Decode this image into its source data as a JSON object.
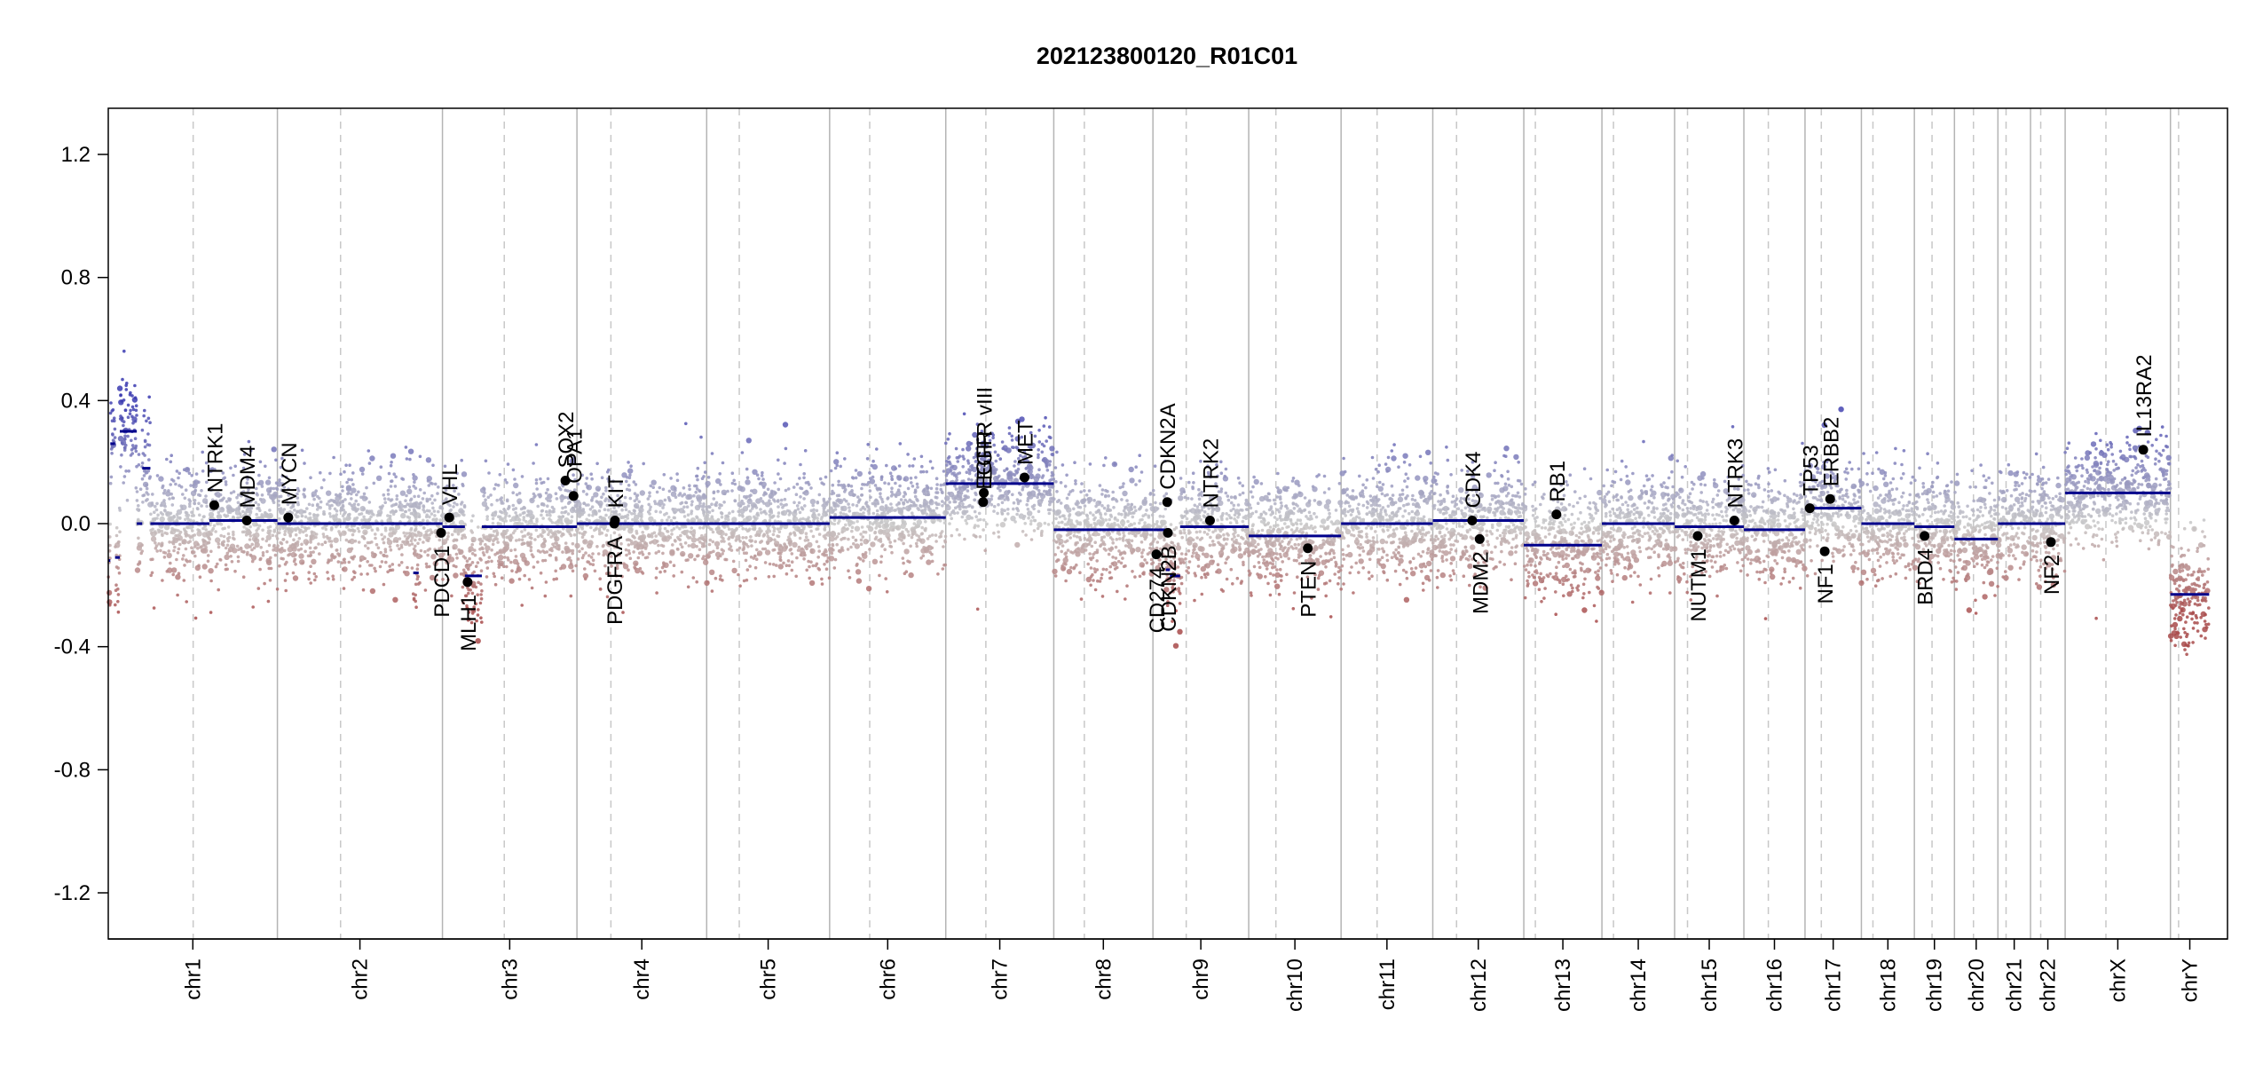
{
  "chart_data": {
    "type": "scatter",
    "title": "202123800120_R01C01",
    "xlabel": "",
    "ylabel": "",
    "ylim": [
      -1.35,
      1.35
    ],
    "y_ticks": [
      -1.2,
      -0.8,
      -0.4,
      0.0,
      0.4,
      0.8,
      1.2
    ],
    "y_tick_labels": [
      "-1.2",
      "-0.8",
      "-0.4",
      "0.0",
      "0.4",
      "0.8",
      "1.2"
    ],
    "genome_length_mb": 3120,
    "chromosomes": [
      {
        "name": "chr1",
        "length_mb": 249,
        "centromere_mb": 125
      },
      {
        "name": "chr2",
        "length_mb": 243,
        "centromere_mb": 93
      },
      {
        "name": "chr3",
        "length_mb": 198,
        "centromere_mb": 91
      },
      {
        "name": "chr4",
        "length_mb": 191,
        "centromere_mb": 50
      },
      {
        "name": "chr5",
        "length_mb": 181,
        "centromere_mb": 48
      },
      {
        "name": "chr6",
        "length_mb": 171,
        "centromere_mb": 59
      },
      {
        "name": "chr7",
        "length_mb": 159,
        "centromere_mb": 59
      },
      {
        "name": "chr8",
        "length_mb": 146,
        "centromere_mb": 45
      },
      {
        "name": "chr9",
        "length_mb": 141,
        "centromere_mb": 49
      },
      {
        "name": "chr10",
        "length_mb": 136,
        "centromere_mb": 40
      },
      {
        "name": "chr11",
        "length_mb": 135,
        "centromere_mb": 53
      },
      {
        "name": "chr12",
        "length_mb": 134,
        "centromere_mb": 35
      },
      {
        "name": "chr13",
        "length_mb": 115,
        "centromere_mb": 17
      },
      {
        "name": "chr14",
        "length_mb": 107,
        "centromere_mb": 17
      },
      {
        "name": "chr15",
        "length_mb": 102,
        "centromere_mb": 19
      },
      {
        "name": "chr16",
        "length_mb": 90,
        "centromere_mb": 36
      },
      {
        "name": "chr17",
        "length_mb": 83,
        "centromere_mb": 24
      },
      {
        "name": "chr18",
        "length_mb": 78,
        "centromere_mb": 17
      },
      {
        "name": "chr19",
        "length_mb": 59,
        "centromere_mb": 26
      },
      {
        "name": "chr20",
        "length_mb": 64,
        "centromere_mb": 28
      },
      {
        "name": "chr21",
        "length_mb": 48,
        "centromere_mb": 12
      },
      {
        "name": "chr22",
        "length_mb": 51,
        "centromere_mb": 15
      },
      {
        "name": "chrX",
        "length_mb": 155,
        "centromere_mb": 60
      },
      {
        "name": "chrY",
        "length_mb": 57,
        "centromere_mb": 12
      }
    ],
    "segments": [
      {
        "chr": "chr1",
        "start_mb": 0,
        "end_mb": 3,
        "value": -0.12
      },
      {
        "chr": "chr1",
        "start_mb": 3,
        "end_mb": 10,
        "value": 0.26
      },
      {
        "chr": "chr1",
        "start_mb": 10,
        "end_mb": 17,
        "value": -0.11
      },
      {
        "chr": "chr1",
        "start_mb": 17,
        "end_mb": 42,
        "value": 0.3
      },
      {
        "chr": "chr1",
        "start_mb": 42,
        "end_mb": 50,
        "value": 0.0
      },
      {
        "chr": "chr1",
        "start_mb": 50,
        "end_mb": 62,
        "value": 0.18
      },
      {
        "chr": "chr1",
        "start_mb": 62,
        "end_mb": 149,
        "value": 0.0
      },
      {
        "chr": "chr1",
        "start_mb": 149,
        "end_mb": 249,
        "value": 0.01
      },
      {
        "chr": "chr2",
        "start_mb": 0,
        "end_mb": 243,
        "value": 0.0
      },
      {
        "chr": "chr2",
        "start_mb": 200,
        "end_mb": 208,
        "value": -0.16
      },
      {
        "chr": "chr3",
        "start_mb": 0,
        "end_mb": 33,
        "value": -0.01
      },
      {
        "chr": "chr3",
        "start_mb": 33,
        "end_mb": 58,
        "value": -0.17
      },
      {
        "chr": "chr3",
        "start_mb": 58,
        "end_mb": 198,
        "value": -0.01
      },
      {
        "chr": "chr4",
        "start_mb": 0,
        "end_mb": 191,
        "value": 0.0
      },
      {
        "chr": "chr5",
        "start_mb": 0,
        "end_mb": 181,
        "value": 0.0
      },
      {
        "chr": "chr6",
        "start_mb": 0,
        "end_mb": 171,
        "value": 0.02
      },
      {
        "chr": "chr7",
        "start_mb": 0,
        "end_mb": 159,
        "value": 0.13
      },
      {
        "chr": "chr8",
        "start_mb": 0,
        "end_mb": 146,
        "value": -0.02
      },
      {
        "chr": "chr9",
        "start_mb": 0,
        "end_mb": 19,
        "value": -0.02
      },
      {
        "chr": "chr9",
        "start_mb": 19,
        "end_mb": 25,
        "value": -0.15
      },
      {
        "chr": "chr9",
        "start_mb": 25,
        "end_mb": 40,
        "value": -0.17
      },
      {
        "chr": "chr9",
        "start_mb": 40,
        "end_mb": 141,
        "value": -0.01
      },
      {
        "chr": "chr10",
        "start_mb": 0,
        "end_mb": 136,
        "value": -0.04
      },
      {
        "chr": "chr11",
        "start_mb": 0,
        "end_mb": 135,
        "value": 0.0
      },
      {
        "chr": "chr12",
        "start_mb": 0,
        "end_mb": 134,
        "value": 0.01
      },
      {
        "chr": "chr13",
        "start_mb": 0,
        "end_mb": 115,
        "value": -0.07
      },
      {
        "chr": "chr14",
        "start_mb": 0,
        "end_mb": 107,
        "value": 0.0
      },
      {
        "chr": "chr15",
        "start_mb": 0,
        "end_mb": 102,
        "value": -0.01
      },
      {
        "chr": "chr16",
        "start_mb": 0,
        "end_mb": 90,
        "value": -0.02
      },
      {
        "chr": "chr17",
        "start_mb": 0,
        "end_mb": 83,
        "value": 0.05
      },
      {
        "chr": "chr18",
        "start_mb": 0,
        "end_mb": 78,
        "value": 0.0
      },
      {
        "chr": "chr19",
        "start_mb": 0,
        "end_mb": 59,
        "value": -0.01
      },
      {
        "chr": "chr20",
        "start_mb": 0,
        "end_mb": 64,
        "value": -0.05
      },
      {
        "chr": "chr21",
        "start_mb": 0,
        "end_mb": 48,
        "value": 0.0
      },
      {
        "chr": "chr22",
        "start_mb": 0,
        "end_mb": 51,
        "value": 0.0
      },
      {
        "chr": "chrX",
        "start_mb": 0,
        "end_mb": 155,
        "value": 0.1
      },
      {
        "chr": "chrY",
        "start_mb": 0,
        "end_mb": 57,
        "value": -0.23
      }
    ],
    "genes": [
      {
        "name": "NTRK1",
        "chr": "chr1",
        "pos_mb": 156,
        "value": 0.06,
        "label_side": "above"
      },
      {
        "name": "MDM4",
        "chr": "chr1",
        "pos_mb": 204,
        "value": 0.01,
        "label_side": "above"
      },
      {
        "name": "MYCN",
        "chr": "chr2",
        "pos_mb": 16,
        "value": 0.02,
        "label_side": "above"
      },
      {
        "name": "PDCD1",
        "chr": "chr2",
        "pos_mb": 241,
        "value": -0.03,
        "label_side": "below"
      },
      {
        "name": "VHL",
        "chr": "chr3",
        "pos_mb": 10,
        "value": 0.02,
        "label_side": "above"
      },
      {
        "name": "MLH1",
        "chr": "chr3",
        "pos_mb": 37,
        "value": -0.19,
        "label_side": "below"
      },
      {
        "name": "SOX2",
        "chr": "chr3",
        "pos_mb": 181,
        "value": 0.14,
        "label_side": "above"
      },
      {
        "name": "OPA1",
        "chr": "chr3",
        "pos_mb": 193,
        "value": 0.09,
        "label_side": "above"
      },
      {
        "name": "PDGFRA",
        "chr": "chr4",
        "pos_mb": 55,
        "value": 0.0,
        "label_side": "below"
      },
      {
        "name": "KIT",
        "chr": "chr4",
        "pos_mb": 56,
        "value": 0.01,
        "label_side": "above"
      },
      {
        "name": "EGFR",
        "chr": "chr7",
        "pos_mb": 55,
        "value": 0.07,
        "label_side": "above"
      },
      {
        "name": "EGFR vIII",
        "chr": "chr7",
        "pos_mb": 56,
        "value": 0.1,
        "label_side": "above"
      },
      {
        "name": "MET",
        "chr": "chr7",
        "pos_mb": 116,
        "value": 0.15,
        "label_side": "above"
      },
      {
        "name": "CDKN2A",
        "chr": "chr9",
        "pos_mb": 21,
        "value": 0.07,
        "label_side": "above"
      },
      {
        "name": "CDKN2B",
        "chr": "chr9",
        "pos_mb": 22,
        "value": -0.03,
        "label_side": "below"
      },
      {
        "name": "CD274",
        "chr": "chr9",
        "pos_mb": 5,
        "value": -0.1,
        "label_side": "below"
      },
      {
        "name": "NTRK2",
        "chr": "chr9",
        "pos_mb": 84,
        "value": 0.01,
        "label_side": "above"
      },
      {
        "name": "PTEN",
        "chr": "chr10",
        "pos_mb": 87,
        "value": -0.08,
        "label_side": "below"
      },
      {
        "name": "CDK4",
        "chr": "chr12",
        "pos_mb": 58,
        "value": 0.01,
        "label_side": "above"
      },
      {
        "name": "MDM2",
        "chr": "chr12",
        "pos_mb": 69,
        "value": -0.05,
        "label_side": "below"
      },
      {
        "name": "RB1",
        "chr": "chr13",
        "pos_mb": 48,
        "value": 0.03,
        "label_side": "above"
      },
      {
        "name": "NUTM1",
        "chr": "chr15",
        "pos_mb": 34,
        "value": -0.04,
        "label_side": "below"
      },
      {
        "name": "NTRK3",
        "chr": "chr15",
        "pos_mb": 88,
        "value": 0.01,
        "label_side": "above"
      },
      {
        "name": "TP53",
        "chr": "chr17",
        "pos_mb": 7,
        "value": 0.05,
        "label_side": "above"
      },
      {
        "name": "NF1",
        "chr": "chr17",
        "pos_mb": 29,
        "value": -0.09,
        "label_side": "below"
      },
      {
        "name": "ERBB2",
        "chr": "chr17",
        "pos_mb": 37,
        "value": 0.08,
        "label_side": "above"
      },
      {
        "name": "BRD4",
        "chr": "chr19",
        "pos_mb": 15,
        "value": -0.04,
        "label_side": "below"
      },
      {
        "name": "NF2",
        "chr": "chr22",
        "pos_mb": 30,
        "value": -0.06,
        "label_side": "below"
      },
      {
        "name": "IL13RA2",
        "chr": "chrX",
        "pos_mb": 115,
        "value": 0.24,
        "label_side": "above"
      }
    ],
    "colors": {
      "gain": "#3a3ab0",
      "neutral": "#c8c8c8",
      "loss": "#a84a4a",
      "segment": "#00008b",
      "gene_point": "#000000",
      "chr_boundary": "#b4b4b4",
      "centromere": "#c8c8c8"
    },
    "grid": false,
    "legend": "none"
  }
}
